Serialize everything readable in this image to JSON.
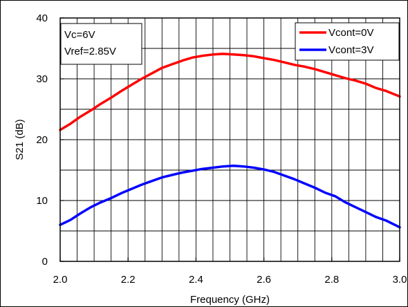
{
  "chart_data": {
    "type": "line",
    "title": "",
    "xlabel": "Frequency (GHz)",
    "ylabel": "S21 (dB)",
    "xlim": [
      2.0,
      3.0
    ],
    "ylim": [
      0,
      40
    ],
    "x_ticks": [
      "2.0",
      "2.2",
      "2.4",
      "2.6",
      "2.8",
      "3.0"
    ],
    "y_ticks": [
      "0",
      "10",
      "20",
      "30",
      "40"
    ],
    "x_tick_values": [
      2.0,
      2.2,
      2.4,
      2.6,
      2.8,
      3.0
    ],
    "y_tick_values": [
      0,
      10,
      20,
      30,
      40
    ],
    "x_minor_step": 0.05,
    "y_minor_step": 5,
    "grid": true,
    "legend_position": "top-right",
    "annotation_lines": [
      "Vc=6V",
      "Vref=2.85V"
    ],
    "annotation_position": "top-left",
    "series": [
      {
        "name": "Vcont=0V",
        "color": "#ff0000",
        "points": [
          [
            2.0,
            21.6
          ],
          [
            2.03,
            22.6
          ],
          [
            2.06,
            23.8
          ],
          [
            2.09,
            24.8
          ],
          [
            2.12,
            25.9
          ],
          [
            2.15,
            26.9
          ],
          [
            2.18,
            28.0
          ],
          [
            2.21,
            29.0
          ],
          [
            2.24,
            30.0
          ],
          [
            2.27,
            30.9
          ],
          [
            2.3,
            31.8
          ],
          [
            2.33,
            32.4
          ],
          [
            2.36,
            33.0
          ],
          [
            2.39,
            33.5
          ],
          [
            2.42,
            33.8
          ],
          [
            2.45,
            34.0
          ],
          [
            2.48,
            34.1
          ],
          [
            2.51,
            34.0
          ],
          [
            2.54,
            33.9
          ],
          [
            2.57,
            33.7
          ],
          [
            2.6,
            33.4
          ],
          [
            2.63,
            33.1
          ],
          [
            2.66,
            32.7
          ],
          [
            2.69,
            32.3
          ],
          [
            2.72,
            32.0
          ],
          [
            2.75,
            31.6
          ],
          [
            2.78,
            31.1
          ],
          [
            2.81,
            30.6
          ],
          [
            2.84,
            30.1
          ],
          [
            2.87,
            29.7
          ],
          [
            2.9,
            29.2
          ],
          [
            2.93,
            28.5
          ],
          [
            2.96,
            28.0
          ],
          [
            3.0,
            27.1
          ]
        ]
      },
      {
        "name": "Vcont=3V",
        "color": "#0000ff",
        "points": [
          [
            2.0,
            6.0
          ],
          [
            2.03,
            6.8
          ],
          [
            2.06,
            7.9
          ],
          [
            2.09,
            8.9
          ],
          [
            2.12,
            9.7
          ],
          [
            2.15,
            10.4
          ],
          [
            2.18,
            11.2
          ],
          [
            2.21,
            11.9
          ],
          [
            2.24,
            12.6
          ],
          [
            2.27,
            13.2
          ],
          [
            2.3,
            13.8
          ],
          [
            2.33,
            14.2
          ],
          [
            2.36,
            14.6
          ],
          [
            2.39,
            14.9
          ],
          [
            2.42,
            15.2
          ],
          [
            2.45,
            15.4
          ],
          [
            2.48,
            15.6
          ],
          [
            2.51,
            15.7
          ],
          [
            2.54,
            15.6
          ],
          [
            2.57,
            15.4
          ],
          [
            2.6,
            15.1
          ],
          [
            2.63,
            14.7
          ],
          [
            2.66,
            14.1
          ],
          [
            2.69,
            13.5
          ],
          [
            2.72,
            12.8
          ],
          [
            2.75,
            12.1
          ],
          [
            2.78,
            11.3
          ],
          [
            2.81,
            10.7
          ],
          [
            2.84,
            9.7
          ],
          [
            2.87,
            8.9
          ],
          [
            2.9,
            8.1
          ],
          [
            2.93,
            7.3
          ],
          [
            2.96,
            6.7
          ],
          [
            3.0,
            5.6
          ]
        ]
      }
    ]
  }
}
